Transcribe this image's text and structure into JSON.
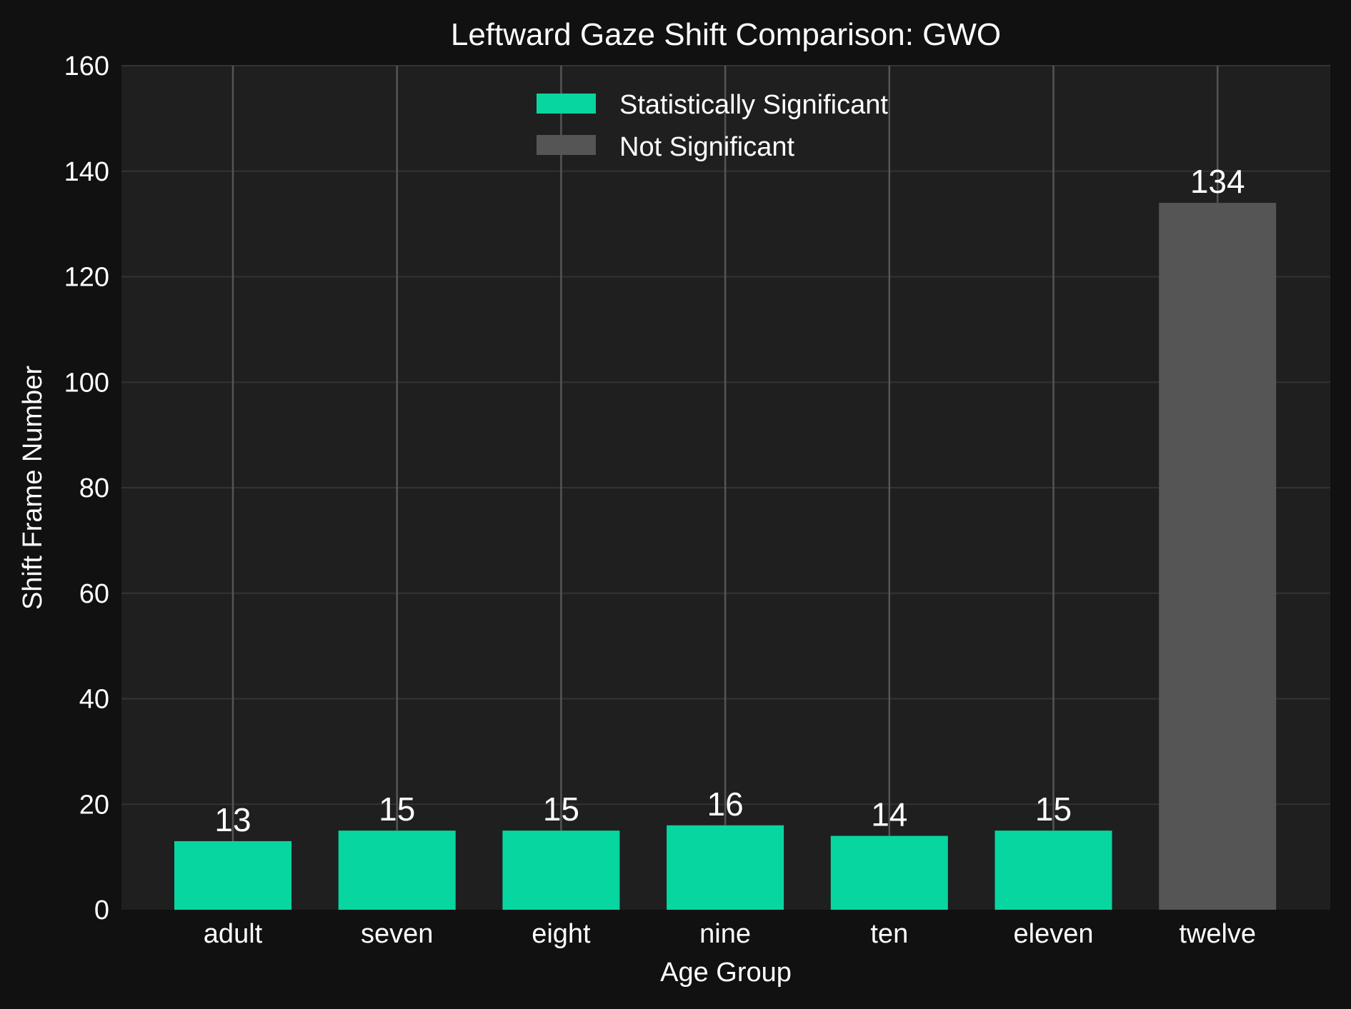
{
  "chart_data": {
    "type": "bar",
    "title": "Leftward Gaze Shift Comparison: GWO",
    "xlabel": "Age Group",
    "ylabel": "Shift Frame Number",
    "categories": [
      "adult",
      "seven",
      "eight",
      "nine",
      "ten",
      "eleven",
      "twelve"
    ],
    "values": [
      13,
      15,
      15,
      16,
      14,
      15,
      134
    ],
    "value_labels": [
      "13",
      "15",
      "15",
      "16",
      "14",
      "15",
      "134"
    ],
    "significance": [
      "Statistically Significant",
      "Statistically Significant",
      "Statistically Significant",
      "Statistically Significant",
      "Statistically Significant",
      "Statistically Significant",
      "Not Significant"
    ],
    "ylim": [
      0,
      160
    ],
    "yticks": [
      0,
      20,
      40,
      60,
      80,
      100,
      120,
      140,
      160
    ],
    "grid": true,
    "legend_placement": "top-center",
    "legend": [
      {
        "label": "Statistically Significant",
        "color": "#08d6a0"
      },
      {
        "label": "Not Significant",
        "color": "#555555"
      }
    ],
    "colors": {
      "page_background": "#111111",
      "plot_background": "#1f1f1f",
      "significant": "#08d6a0",
      "not_significant": "#555555",
      "grid": "#333333",
      "vline": "#555555",
      "text": "#ffffff"
    }
  }
}
